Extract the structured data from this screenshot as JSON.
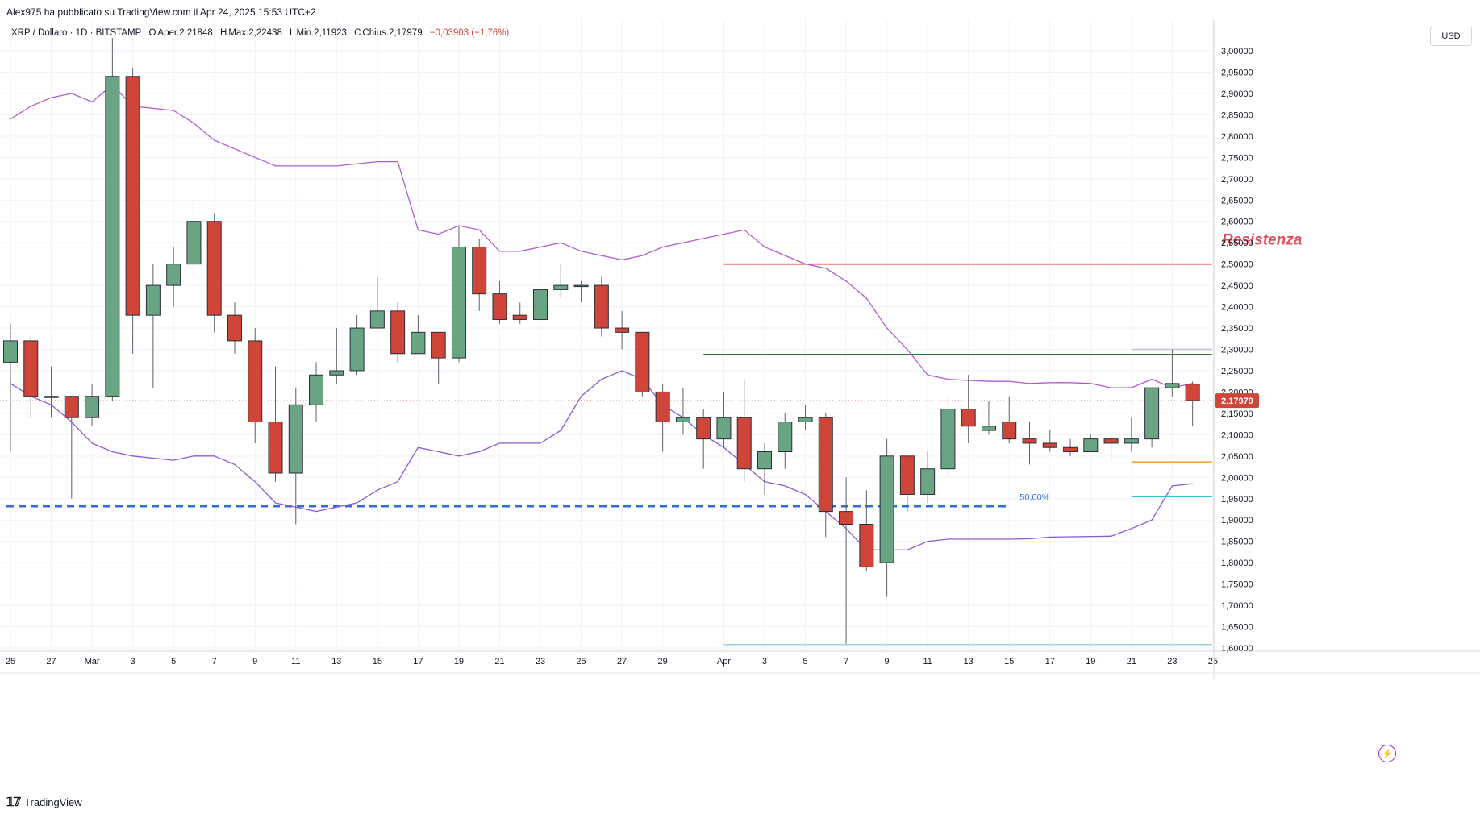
{
  "header": {
    "published": "Alex975 ha pubblicato su TradingView.com il Apr 24, 2025 15:53 UTC+2"
  },
  "legend": {
    "symbol": "XRP / Dollaro · 1D · BITSTAMP",
    "open_label": "O",
    "open": "Aper.2,21848",
    "high_label": "H",
    "high": "Max.2,22438",
    "low_label": "L",
    "low": "Min.2,11923",
    "close_label": "C",
    "close": "Chius.2,17979",
    "change": "−0,03903 (−1,76%)"
  },
  "price_axis": {
    "currency": "USD",
    "current_price": "2,17979",
    "current_price_color": "#d0453a"
  },
  "footer": {
    "brand": "TradingView",
    "logo": "tradingview-logo-icon"
  },
  "colors": {
    "up": "#6aa583",
    "down": "#d0453a",
    "channel": "#b45ad1",
    "resistance": "#e0343f",
    "support_green": "#2e7d32",
    "fib": "#2f6fd6",
    "orange": "#f5a623",
    "cyan": "#33c3d6",
    "grey_line": "#c4c7cf"
  },
  "chart_data": {
    "type": "candlestick",
    "title": "XRP / Dollaro · 1D · BITSTAMP",
    "y_ticks": [
      "3,00000",
      "2,95000",
      "2,90000",
      "2,85000",
      "2,80000",
      "2,75000",
      "2,70000",
      "2,65000",
      "2,60000",
      "2,55000",
      "2,50000",
      "2,45000",
      "2,40000",
      "2,35000",
      "2,30000",
      "2,25000",
      "2,20000",
      "2,15000",
      "2,10000",
      "2,05000",
      "2,00000",
      "1,95000",
      "1,90000",
      "1,85000",
      "1,80000",
      "1,75000",
      "1,70000",
      "1,65000",
      "1,60000"
    ],
    "ylim": [
      1.6,
      3.0
    ],
    "x_ticks": [
      {
        "label": "25",
        "date": "2025-02-25"
      },
      {
        "label": "27",
        "date": "2025-02-27"
      },
      {
        "label": "Mar",
        "date": "2025-03-01"
      },
      {
        "label": "3",
        "date": "2025-03-03"
      },
      {
        "label": "5",
        "date": "2025-03-05"
      },
      {
        "label": "7",
        "date": "2025-03-07"
      },
      {
        "label": "9",
        "date": "2025-03-09"
      },
      {
        "label": "11",
        "date": "2025-03-11"
      },
      {
        "label": "13",
        "date": "2025-03-13"
      },
      {
        "label": "15",
        "date": "2025-03-15"
      },
      {
        "label": "17",
        "date": "2025-03-17"
      },
      {
        "label": "19",
        "date": "2025-03-19"
      },
      {
        "label": "21",
        "date": "2025-03-21"
      },
      {
        "label": "23",
        "date": "2025-03-23"
      },
      {
        "label": "25",
        "date": "2025-03-25"
      },
      {
        "label": "27",
        "date": "2025-03-27"
      },
      {
        "label": "29",
        "date": "2025-03-29"
      },
      {
        "label": "Apr",
        "date": "2025-04-01"
      },
      {
        "label": "3",
        "date": "2025-04-03"
      },
      {
        "label": "5",
        "date": "2025-04-05"
      },
      {
        "label": "7",
        "date": "2025-04-07"
      },
      {
        "label": "9",
        "date": "2025-04-09"
      },
      {
        "label": "11",
        "date": "2025-04-11"
      },
      {
        "label": "13",
        "date": "2025-04-13"
      },
      {
        "label": "15",
        "date": "2025-04-15"
      },
      {
        "label": "17",
        "date": "2025-04-17"
      },
      {
        "label": "19",
        "date": "2025-04-19"
      },
      {
        "label": "21",
        "date": "2025-04-21"
      },
      {
        "label": "23",
        "date": "2025-04-23"
      },
      {
        "label": "25",
        "date": "2025-04-25"
      }
    ],
    "candles": [
      {
        "date": "2025-02-25",
        "o": 2.27,
        "h": 2.36,
        "l": 2.06,
        "c": 2.32
      },
      {
        "date": "2025-02-26",
        "o": 2.32,
        "h": 2.33,
        "l": 2.14,
        "c": 2.19
      },
      {
        "date": "2025-02-27",
        "o": 2.19,
        "h": 2.26,
        "l": 2.14,
        "c": 2.19
      },
      {
        "date": "2025-02-28",
        "o": 2.19,
        "h": 2.19,
        "l": 1.95,
        "c": 2.14
      },
      {
        "date": "2025-03-01",
        "o": 2.14,
        "h": 2.22,
        "l": 2.12,
        "c": 2.19
      },
      {
        "date": "2025-03-02",
        "o": 2.19,
        "h": 3.03,
        "l": 2.18,
        "c": 2.94
      },
      {
        "date": "2025-03-03",
        "o": 2.94,
        "h": 2.96,
        "l": 2.29,
        "c": 2.38
      },
      {
        "date": "2025-03-04",
        "o": 2.38,
        "h": 2.5,
        "l": 2.21,
        "c": 2.45
      },
      {
        "date": "2025-03-05",
        "o": 2.45,
        "h": 2.54,
        "l": 2.4,
        "c": 2.5
      },
      {
        "date": "2025-03-06",
        "o": 2.5,
        "h": 2.65,
        "l": 2.47,
        "c": 2.6
      },
      {
        "date": "2025-03-07",
        "o": 2.6,
        "h": 2.62,
        "l": 2.34,
        "c": 2.38
      },
      {
        "date": "2025-03-08",
        "o": 2.38,
        "h": 2.41,
        "l": 2.29,
        "c": 2.32
      },
      {
        "date": "2025-03-09",
        "o": 2.32,
        "h": 2.35,
        "l": 2.08,
        "c": 2.13
      },
      {
        "date": "2025-03-10",
        "o": 2.13,
        "h": 2.26,
        "l": 1.99,
        "c": 2.01
      },
      {
        "date": "2025-03-11",
        "o": 2.01,
        "h": 2.21,
        "l": 1.89,
        "c": 2.17
      },
      {
        "date": "2025-03-12",
        "o": 2.17,
        "h": 2.27,
        "l": 2.13,
        "c": 2.24
      },
      {
        "date": "2025-03-13",
        "o": 2.24,
        "h": 2.35,
        "l": 2.22,
        "c": 2.25
      },
      {
        "date": "2025-03-14",
        "o": 2.25,
        "h": 2.38,
        "l": 2.24,
        "c": 2.35
      },
      {
        "date": "2025-03-15",
        "o": 2.35,
        "h": 2.47,
        "l": 2.35,
        "c": 2.39
      },
      {
        "date": "2025-03-16",
        "o": 2.39,
        "h": 2.41,
        "l": 2.27,
        "c": 2.29
      },
      {
        "date": "2025-03-17",
        "o": 2.29,
        "h": 2.38,
        "l": 2.29,
        "c": 2.34
      },
      {
        "date": "2025-03-18",
        "o": 2.34,
        "h": 2.34,
        "l": 2.22,
        "c": 2.28
      },
      {
        "date": "2025-03-19",
        "o": 2.28,
        "h": 2.59,
        "l": 2.27,
        "c": 2.54
      },
      {
        "date": "2025-03-20",
        "o": 2.54,
        "h": 2.56,
        "l": 2.39,
        "c": 2.43
      },
      {
        "date": "2025-03-21",
        "o": 2.43,
        "h": 2.46,
        "l": 2.36,
        "c": 2.37
      },
      {
        "date": "2025-03-22",
        "o": 2.38,
        "h": 2.41,
        "l": 2.36,
        "c": 2.37
      },
      {
        "date": "2025-03-23",
        "o": 2.37,
        "h": 2.44,
        "l": 2.37,
        "c": 2.44
      },
      {
        "date": "2025-03-24",
        "o": 2.44,
        "h": 2.5,
        "l": 2.42,
        "c": 2.45
      },
      {
        "date": "2025-03-25",
        "o": 2.45,
        "h": 2.46,
        "l": 2.41,
        "c": 2.45
      },
      {
        "date": "2025-03-26",
        "o": 2.45,
        "h": 2.47,
        "l": 2.33,
        "c": 2.35
      },
      {
        "date": "2025-03-27",
        "o": 2.35,
        "h": 2.39,
        "l": 2.3,
        "c": 2.34
      },
      {
        "date": "2025-03-28",
        "o": 2.34,
        "h": 2.34,
        "l": 2.19,
        "c": 2.2
      },
      {
        "date": "2025-03-29",
        "o": 2.2,
        "h": 2.22,
        "l": 2.06,
        "c": 2.13
      },
      {
        "date": "2025-03-30",
        "o": 2.13,
        "h": 2.21,
        "l": 2.1,
        "c": 2.14
      },
      {
        "date": "2025-03-31",
        "o": 2.14,
        "h": 2.16,
        "l": 2.02,
        "c": 2.09
      },
      {
        "date": "2025-04-01",
        "o": 2.09,
        "h": 2.2,
        "l": 2.07,
        "c": 2.14
      },
      {
        "date": "2025-04-02",
        "o": 2.14,
        "h": 2.23,
        "l": 1.99,
        "c": 2.02
      },
      {
        "date": "2025-04-03",
        "o": 2.02,
        "h": 2.08,
        "l": 1.96,
        "c": 2.06
      },
      {
        "date": "2025-04-04",
        "o": 2.06,
        "h": 2.15,
        "l": 2.02,
        "c": 2.13
      },
      {
        "date": "2025-04-05",
        "o": 2.13,
        "h": 2.17,
        "l": 2.11,
        "c": 2.14
      },
      {
        "date": "2025-04-06",
        "o": 2.14,
        "h": 2.15,
        "l": 1.86,
        "c": 1.92
      },
      {
        "date": "2025-04-07",
        "o": 1.92,
        "h": 2.0,
        "l": 1.61,
        "c": 1.89
      },
      {
        "date": "2025-04-08",
        "o": 1.89,
        "h": 1.97,
        "l": 1.78,
        "c": 1.79
      },
      {
        "date": "2025-04-09",
        "o": 1.8,
        "h": 2.09,
        "l": 1.72,
        "c": 2.05
      },
      {
        "date": "2025-04-10",
        "o": 2.05,
        "h": 2.05,
        "l": 1.92,
        "c": 1.96
      },
      {
        "date": "2025-04-11",
        "o": 1.96,
        "h": 2.06,
        "l": 1.94,
        "c": 2.02
      },
      {
        "date": "2025-04-12",
        "o": 2.02,
        "h": 2.19,
        "l": 2.0,
        "c": 2.16
      },
      {
        "date": "2025-04-13",
        "o": 2.16,
        "h": 2.24,
        "l": 2.08,
        "c": 2.12
      },
      {
        "date": "2025-04-14",
        "o": 2.11,
        "h": 2.18,
        "l": 2.1,
        "c": 2.12
      },
      {
        "date": "2025-04-15",
        "o": 2.13,
        "h": 2.19,
        "l": 2.08,
        "c": 2.09
      },
      {
        "date": "2025-04-16",
        "o": 2.09,
        "h": 2.13,
        "l": 2.03,
        "c": 2.08
      },
      {
        "date": "2025-04-17",
        "o": 2.08,
        "h": 2.11,
        "l": 2.06,
        "c": 2.07
      },
      {
        "date": "2025-04-18",
        "o": 2.07,
        "h": 2.09,
        "l": 2.05,
        "c": 2.06
      },
      {
        "date": "2025-04-19",
        "o": 2.06,
        "h": 2.1,
        "l": 2.06,
        "c": 2.09
      },
      {
        "date": "2025-04-20",
        "o": 2.09,
        "h": 2.1,
        "l": 2.04,
        "c": 2.08
      },
      {
        "date": "2025-04-21",
        "o": 2.08,
        "h": 2.14,
        "l": 2.06,
        "c": 2.09
      },
      {
        "date": "2025-04-22",
        "o": 2.09,
        "h": 2.2,
        "l": 2.07,
        "c": 2.21
      },
      {
        "date": "2025-04-23",
        "o": 2.21,
        "h": 2.3,
        "l": 2.19,
        "c": 2.22
      },
      {
        "date": "2025-04-24",
        "o": 2.21848,
        "h": 2.22438,
        "l": 2.11923,
        "c": 2.17979
      }
    ],
    "channel_upper": [
      {
        "date": "2025-02-25",
        "v": 2.84
      },
      {
        "date": "2025-02-26",
        "v": 2.87
      },
      {
        "date": "2025-02-27",
        "v": 2.89
      },
      {
        "date": "2025-02-28",
        "v": 2.9
      },
      {
        "date": "2025-03-01",
        "v": 2.88
      },
      {
        "date": "2025-03-02",
        "v": 2.92
      },
      {
        "date": "2025-03-03",
        "v": 2.87
      },
      {
        "date": "2025-03-05",
        "v": 2.86
      },
      {
        "date": "2025-03-06",
        "v": 2.83
      },
      {
        "date": "2025-03-07",
        "v": 2.79
      },
      {
        "date": "2025-03-09",
        "v": 2.75
      },
      {
        "date": "2025-03-10",
        "v": 2.73
      },
      {
        "date": "2025-03-12",
        "v": 2.73
      },
      {
        "date": "2025-03-13",
        "v": 2.73
      },
      {
        "date": "2025-03-15",
        "v": 2.74
      },
      {
        "date": "2025-03-16",
        "v": 2.74
      },
      {
        "date": "2025-03-17",
        "v": 2.58
      },
      {
        "date": "2025-03-18",
        "v": 2.57
      },
      {
        "date": "2025-03-19",
        "v": 2.59
      },
      {
        "date": "2025-03-20",
        "v": 2.58
      },
      {
        "date": "2025-03-21",
        "v": 2.53
      },
      {
        "date": "2025-03-22",
        "v": 2.53
      },
      {
        "date": "2025-03-23",
        "v": 2.54
      },
      {
        "date": "2025-03-24",
        "v": 2.55
      },
      {
        "date": "2025-03-25",
        "v": 2.53
      },
      {
        "date": "2025-03-26",
        "v": 2.52
      },
      {
        "date": "2025-03-27",
        "v": 2.51
      },
      {
        "date": "2025-03-28",
        "v": 2.52
      },
      {
        "date": "2025-03-29",
        "v": 2.54
      },
      {
        "date": "2025-03-30",
        "v": 2.55
      },
      {
        "date": "2025-03-31",
        "v": 2.56
      },
      {
        "date": "2025-04-01",
        "v": 2.57
      },
      {
        "date": "2025-04-02",
        "v": 2.58
      },
      {
        "date": "2025-04-03",
        "v": 2.54
      },
      {
        "date": "2025-04-04",
        "v": 2.52
      },
      {
        "date": "2025-04-05",
        "v": 2.5
      },
      {
        "date": "2025-04-06",
        "v": 2.49
      },
      {
        "date": "2025-04-07",
        "v": 2.46
      },
      {
        "date": "2025-04-08",
        "v": 2.42
      },
      {
        "date": "2025-04-09",
        "v": 2.35
      },
      {
        "date": "2025-04-10",
        "v": 2.3
      },
      {
        "date": "2025-04-11",
        "v": 2.24
      },
      {
        "date": "2025-04-12",
        "v": 2.23
      },
      {
        "date": "2025-04-14",
        "v": 2.225
      },
      {
        "date": "2025-04-15",
        "v": 2.225
      },
      {
        "date": "2025-04-16",
        "v": 2.22
      },
      {
        "date": "2025-04-17",
        "v": 2.222
      },
      {
        "date": "2025-04-18",
        "v": 2.222
      },
      {
        "date": "2025-04-19",
        "v": 2.22
      },
      {
        "date": "2025-04-20",
        "v": 2.21
      },
      {
        "date": "2025-04-21",
        "v": 2.21
      },
      {
        "date": "2025-04-22",
        "v": 2.23
      },
      {
        "date": "2025-04-23",
        "v": 2.21
      },
      {
        "date": "2025-04-24",
        "v": 2.22
      }
    ],
    "channel_lower": [
      {
        "date": "2025-02-25",
        "v": 2.22
      },
      {
        "date": "2025-02-26",
        "v": 2.19
      },
      {
        "date": "2025-02-27",
        "v": 2.17
      },
      {
        "date": "2025-02-28",
        "v": 2.13
      },
      {
        "date": "2025-03-01",
        "v": 2.08
      },
      {
        "date": "2025-03-02",
        "v": 2.06
      },
      {
        "date": "2025-03-03",
        "v": 2.05
      },
      {
        "date": "2025-03-05",
        "v": 2.04
      },
      {
        "date": "2025-03-06",
        "v": 2.05
      },
      {
        "date": "2025-03-07",
        "v": 2.05
      },
      {
        "date": "2025-03-08",
        "v": 2.03
      },
      {
        "date": "2025-03-09",
        "v": 1.99
      },
      {
        "date": "2025-03-10",
        "v": 1.94
      },
      {
        "date": "2025-03-11",
        "v": 1.93
      },
      {
        "date": "2025-03-12",
        "v": 1.92
      },
      {
        "date": "2025-03-13",
        "v": 1.93
      },
      {
        "date": "2025-03-14",
        "v": 1.94
      },
      {
        "date": "2025-03-15",
        "v": 1.97
      },
      {
        "date": "2025-03-16",
        "v": 1.99
      },
      {
        "date": "2025-03-17",
        "v": 2.07
      },
      {
        "date": "2025-03-18",
        "v": 2.06
      },
      {
        "date": "2025-03-19",
        "v": 2.05
      },
      {
        "date": "2025-03-20",
        "v": 2.06
      },
      {
        "date": "2025-03-21",
        "v": 2.08
      },
      {
        "date": "2025-03-23",
        "v": 2.08
      },
      {
        "date": "2025-03-24",
        "v": 2.11
      },
      {
        "date": "2025-03-25",
        "v": 2.19
      },
      {
        "date": "2025-03-26",
        "v": 2.23
      },
      {
        "date": "2025-03-27",
        "v": 2.25
      },
      {
        "date": "2025-03-28",
        "v": 2.23
      },
      {
        "date": "2025-03-29",
        "v": 2.17
      },
      {
        "date": "2025-03-30",
        "v": 2.14
      },
      {
        "date": "2025-03-31",
        "v": 2.1
      },
      {
        "date": "2025-04-01",
        "v": 2.07
      },
      {
        "date": "2025-04-02",
        "v": 2.03
      },
      {
        "date": "2025-04-03",
        "v": 1.99
      },
      {
        "date": "2025-04-04",
        "v": 1.98
      },
      {
        "date": "2025-04-05",
        "v": 1.96
      },
      {
        "date": "2025-04-06",
        "v": 1.92
      },
      {
        "date": "2025-04-07",
        "v": 1.88
      },
      {
        "date": "2025-04-08",
        "v": 1.83
      },
      {
        "date": "2025-04-09",
        "v": 1.83
      },
      {
        "date": "2025-04-10",
        "v": 1.83
      },
      {
        "date": "2025-04-11",
        "v": 1.85
      },
      {
        "date": "2025-04-12",
        "v": 1.855
      },
      {
        "date": "2025-04-15",
        "v": 1.855
      },
      {
        "date": "2025-04-16",
        "v": 1.856
      },
      {
        "date": "2025-04-17",
        "v": 1.86
      },
      {
        "date": "2025-04-20",
        "v": 1.862
      },
      {
        "date": "2025-04-21",
        "v": 1.88
      },
      {
        "date": "2025-04-22",
        "v": 1.9
      },
      {
        "date": "2025-04-23",
        "v": 1.98
      },
      {
        "date": "2025-04-24",
        "v": 1.985
      }
    ],
    "annotations": {
      "resistance_label": "Resistenza",
      "resistance_level": 2.5,
      "resistance_from": "2025-04-01",
      "green_level": 2.288,
      "green_from": "2025-03-31",
      "fib_label": "50,00%",
      "fib_level": 1.932,
      "fib_from": "2025-02-25",
      "fib_to": "2025-04-15",
      "orange_level": 2.036,
      "cyan_level": 1.955,
      "grey_upper_level": 2.3,
      "grey_lower_level": 1.608,
      "right_lines_from": "2025-04-21",
      "grey_lower_from": "2025-04-01",
      "current_price": 2.17979
    }
  }
}
